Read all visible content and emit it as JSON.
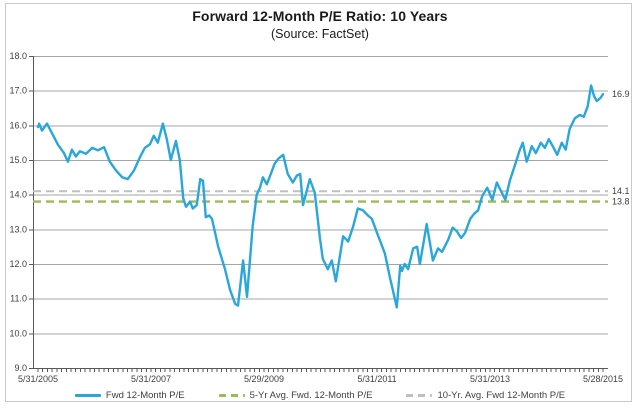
{
  "title": "Forward 12-Month P/E Ratio: 10 Years",
  "subtitle": "(Source: FactSet)",
  "colors": {
    "line_blue": "#29A7DB",
    "avg5_green": "#9BBB59",
    "avg10_gray": "#BFBFBF",
    "gridline": "#A6A6A6",
    "axis": "#595959",
    "text": "#404040",
    "frame_border": "#C9C9C9",
    "background": "#FFFFFF"
  },
  "chart_data": {
    "type": "line",
    "title": "Forward 12-Month P/E Ratio: 10 Years",
    "subtitle": "(Source: FactSet)",
    "grid": true,
    "legend_position": "bottom",
    "x_axis": {
      "tick_labels": [
        "5/31/2005",
        "5/31/2007",
        "5/29/2009",
        "5/31/2011",
        "5/31/2013",
        "5/28/2015"
      ],
      "tick_years": [
        2005.41,
        2007.41,
        2009.41,
        2011.41,
        2013.41,
        2015.41
      ],
      "range_years": [
        2005.41,
        2015.41
      ],
      "minor_ticks": "monthly"
    },
    "y_axis": {
      "tick_labels": [
        "18.0",
        "17.0",
        "16.0",
        "15.0",
        "14.0",
        "13.0",
        "12.0",
        "11.0",
        "10.0",
        "9.0"
      ],
      "min": 9.0,
      "max": 18.0,
      "step": 1.0
    },
    "series": [
      {
        "name": "Fwd 12-Month P/E",
        "type": "line",
        "color": "#29A7DB",
        "dashed": false,
        "points": [
          [
            2005.41,
            15.95
          ],
          [
            2005.43,
            16.05
          ],
          [
            2005.48,
            15.85
          ],
          [
            2005.57,
            16.05
          ],
          [
            2005.68,
            15.7
          ],
          [
            2005.76,
            15.45
          ],
          [
            2005.87,
            15.2
          ],
          [
            2005.94,
            14.95
          ],
          [
            2006.01,
            15.3
          ],
          [
            2006.08,
            15.1
          ],
          [
            2006.15,
            15.25
          ],
          [
            2006.26,
            15.18
          ],
          [
            2006.37,
            15.35
          ],
          [
            2006.47,
            15.28
          ],
          [
            2006.58,
            15.37
          ],
          [
            2006.68,
            14.95
          ],
          [
            2006.79,
            14.7
          ],
          [
            2006.9,
            14.5
          ],
          [
            2007.0,
            14.45
          ],
          [
            2007.11,
            14.7
          ],
          [
            2007.22,
            15.1
          ],
          [
            2007.3,
            15.35
          ],
          [
            2007.39,
            15.45
          ],
          [
            2007.46,
            15.7
          ],
          [
            2007.53,
            15.5
          ],
          [
            2007.62,
            16.05
          ],
          [
            2007.69,
            15.6
          ],
          [
            2007.76,
            15.0
          ],
          [
            2007.85,
            15.55
          ],
          [
            2007.92,
            15.0
          ],
          [
            2007.98,
            13.9
          ],
          [
            2008.03,
            13.65
          ],
          [
            2008.1,
            13.8
          ],
          [
            2008.15,
            13.6
          ],
          [
            2008.22,
            13.7
          ],
          [
            2008.28,
            14.45
          ],
          [
            2008.33,
            14.4
          ],
          [
            2008.38,
            13.35
          ],
          [
            2008.44,
            13.4
          ],
          [
            2008.49,
            13.3
          ],
          [
            2008.6,
            12.5
          ],
          [
            2008.72,
            11.85
          ],
          [
            2008.81,
            11.25
          ],
          [
            2008.9,
            10.85
          ],
          [
            2008.95,
            10.8
          ],
          [
            2009.04,
            12.1
          ],
          [
            2009.11,
            11.05
          ],
          [
            2009.21,
            13.1
          ],
          [
            2009.28,
            14.0
          ],
          [
            2009.34,
            14.2
          ],
          [
            2009.39,
            14.5
          ],
          [
            2009.46,
            14.3
          ],
          [
            2009.53,
            14.6
          ],
          [
            2009.6,
            14.9
          ],
          [
            2009.67,
            15.05
          ],
          [
            2009.75,
            15.15
          ],
          [
            2009.83,
            14.6
          ],
          [
            2009.92,
            14.35
          ],
          [
            2009.99,
            14.55
          ],
          [
            2010.05,
            14.6
          ],
          [
            2010.1,
            13.7
          ],
          [
            2010.22,
            14.45
          ],
          [
            2010.31,
            14.05
          ],
          [
            2010.4,
            12.75
          ],
          [
            2010.45,
            12.15
          ],
          [
            2010.54,
            11.85
          ],
          [
            2010.61,
            12.1
          ],
          [
            2010.68,
            11.5
          ],
          [
            2010.81,
            12.8
          ],
          [
            2010.9,
            12.65
          ],
          [
            2010.99,
            13.1
          ],
          [
            2011.07,
            13.6
          ],
          [
            2011.16,
            13.55
          ],
          [
            2011.25,
            13.4
          ],
          [
            2011.32,
            13.3
          ],
          [
            2011.41,
            12.9
          ],
          [
            2011.48,
            12.6
          ],
          [
            2011.55,
            12.3
          ],
          [
            2011.64,
            11.6
          ],
          [
            2011.76,
            10.75
          ],
          [
            2011.82,
            11.95
          ],
          [
            2011.85,
            11.8
          ],
          [
            2011.9,
            12.0
          ],
          [
            2011.96,
            11.85
          ],
          [
            2012.05,
            12.45
          ],
          [
            2012.12,
            12.5
          ],
          [
            2012.17,
            12.0
          ],
          [
            2012.29,
            13.15
          ],
          [
            2012.4,
            12.1
          ],
          [
            2012.49,
            12.45
          ],
          [
            2012.56,
            12.35
          ],
          [
            2012.67,
            12.7
          ],
          [
            2012.75,
            13.05
          ],
          [
            2012.82,
            12.95
          ],
          [
            2012.9,
            12.75
          ],
          [
            2012.97,
            12.9
          ],
          [
            2013.06,
            13.3
          ],
          [
            2013.13,
            13.45
          ],
          [
            2013.2,
            13.55
          ],
          [
            2013.27,
            13.95
          ],
          [
            2013.36,
            14.2
          ],
          [
            2013.45,
            13.85
          ],
          [
            2013.53,
            14.35
          ],
          [
            2013.62,
            14.05
          ],
          [
            2013.68,
            13.85
          ],
          [
            2013.76,
            14.4
          ],
          [
            2013.85,
            14.85
          ],
          [
            2013.94,
            15.3
          ],
          [
            2013.99,
            15.5
          ],
          [
            2014.06,
            14.95
          ],
          [
            2014.15,
            15.4
          ],
          [
            2014.22,
            15.2
          ],
          [
            2014.31,
            15.5
          ],
          [
            2014.38,
            15.35
          ],
          [
            2014.45,
            15.6
          ],
          [
            2014.52,
            15.4
          ],
          [
            2014.6,
            15.15
          ],
          [
            2014.68,
            15.5
          ],
          [
            2014.75,
            15.3
          ],
          [
            2014.82,
            15.9
          ],
          [
            2014.91,
            16.2
          ],
          [
            2015.0,
            16.3
          ],
          [
            2015.07,
            16.25
          ],
          [
            2015.14,
            16.55
          ],
          [
            2015.2,
            17.15
          ],
          [
            2015.25,
            16.85
          ],
          [
            2015.3,
            16.7
          ],
          [
            2015.37,
            16.8
          ],
          [
            2015.41,
            16.9
          ]
        ]
      },
      {
        "name": "5-Yr Avg. Fwd. 12-Month P/E",
        "type": "hline",
        "color": "#9BBB59",
        "dashed": true,
        "value": 13.8
      },
      {
        "name": "10-Yr. Avg. Fwd 12-Month P/E",
        "type": "hline",
        "color": "#BFBFBF",
        "dashed": true,
        "value": 14.1
      }
    ],
    "end_labels": [
      {
        "text": "16.9",
        "value": 16.9
      },
      {
        "text": "14.1",
        "value": 14.1
      },
      {
        "text": "13.8",
        "value": 13.8
      }
    ]
  }
}
